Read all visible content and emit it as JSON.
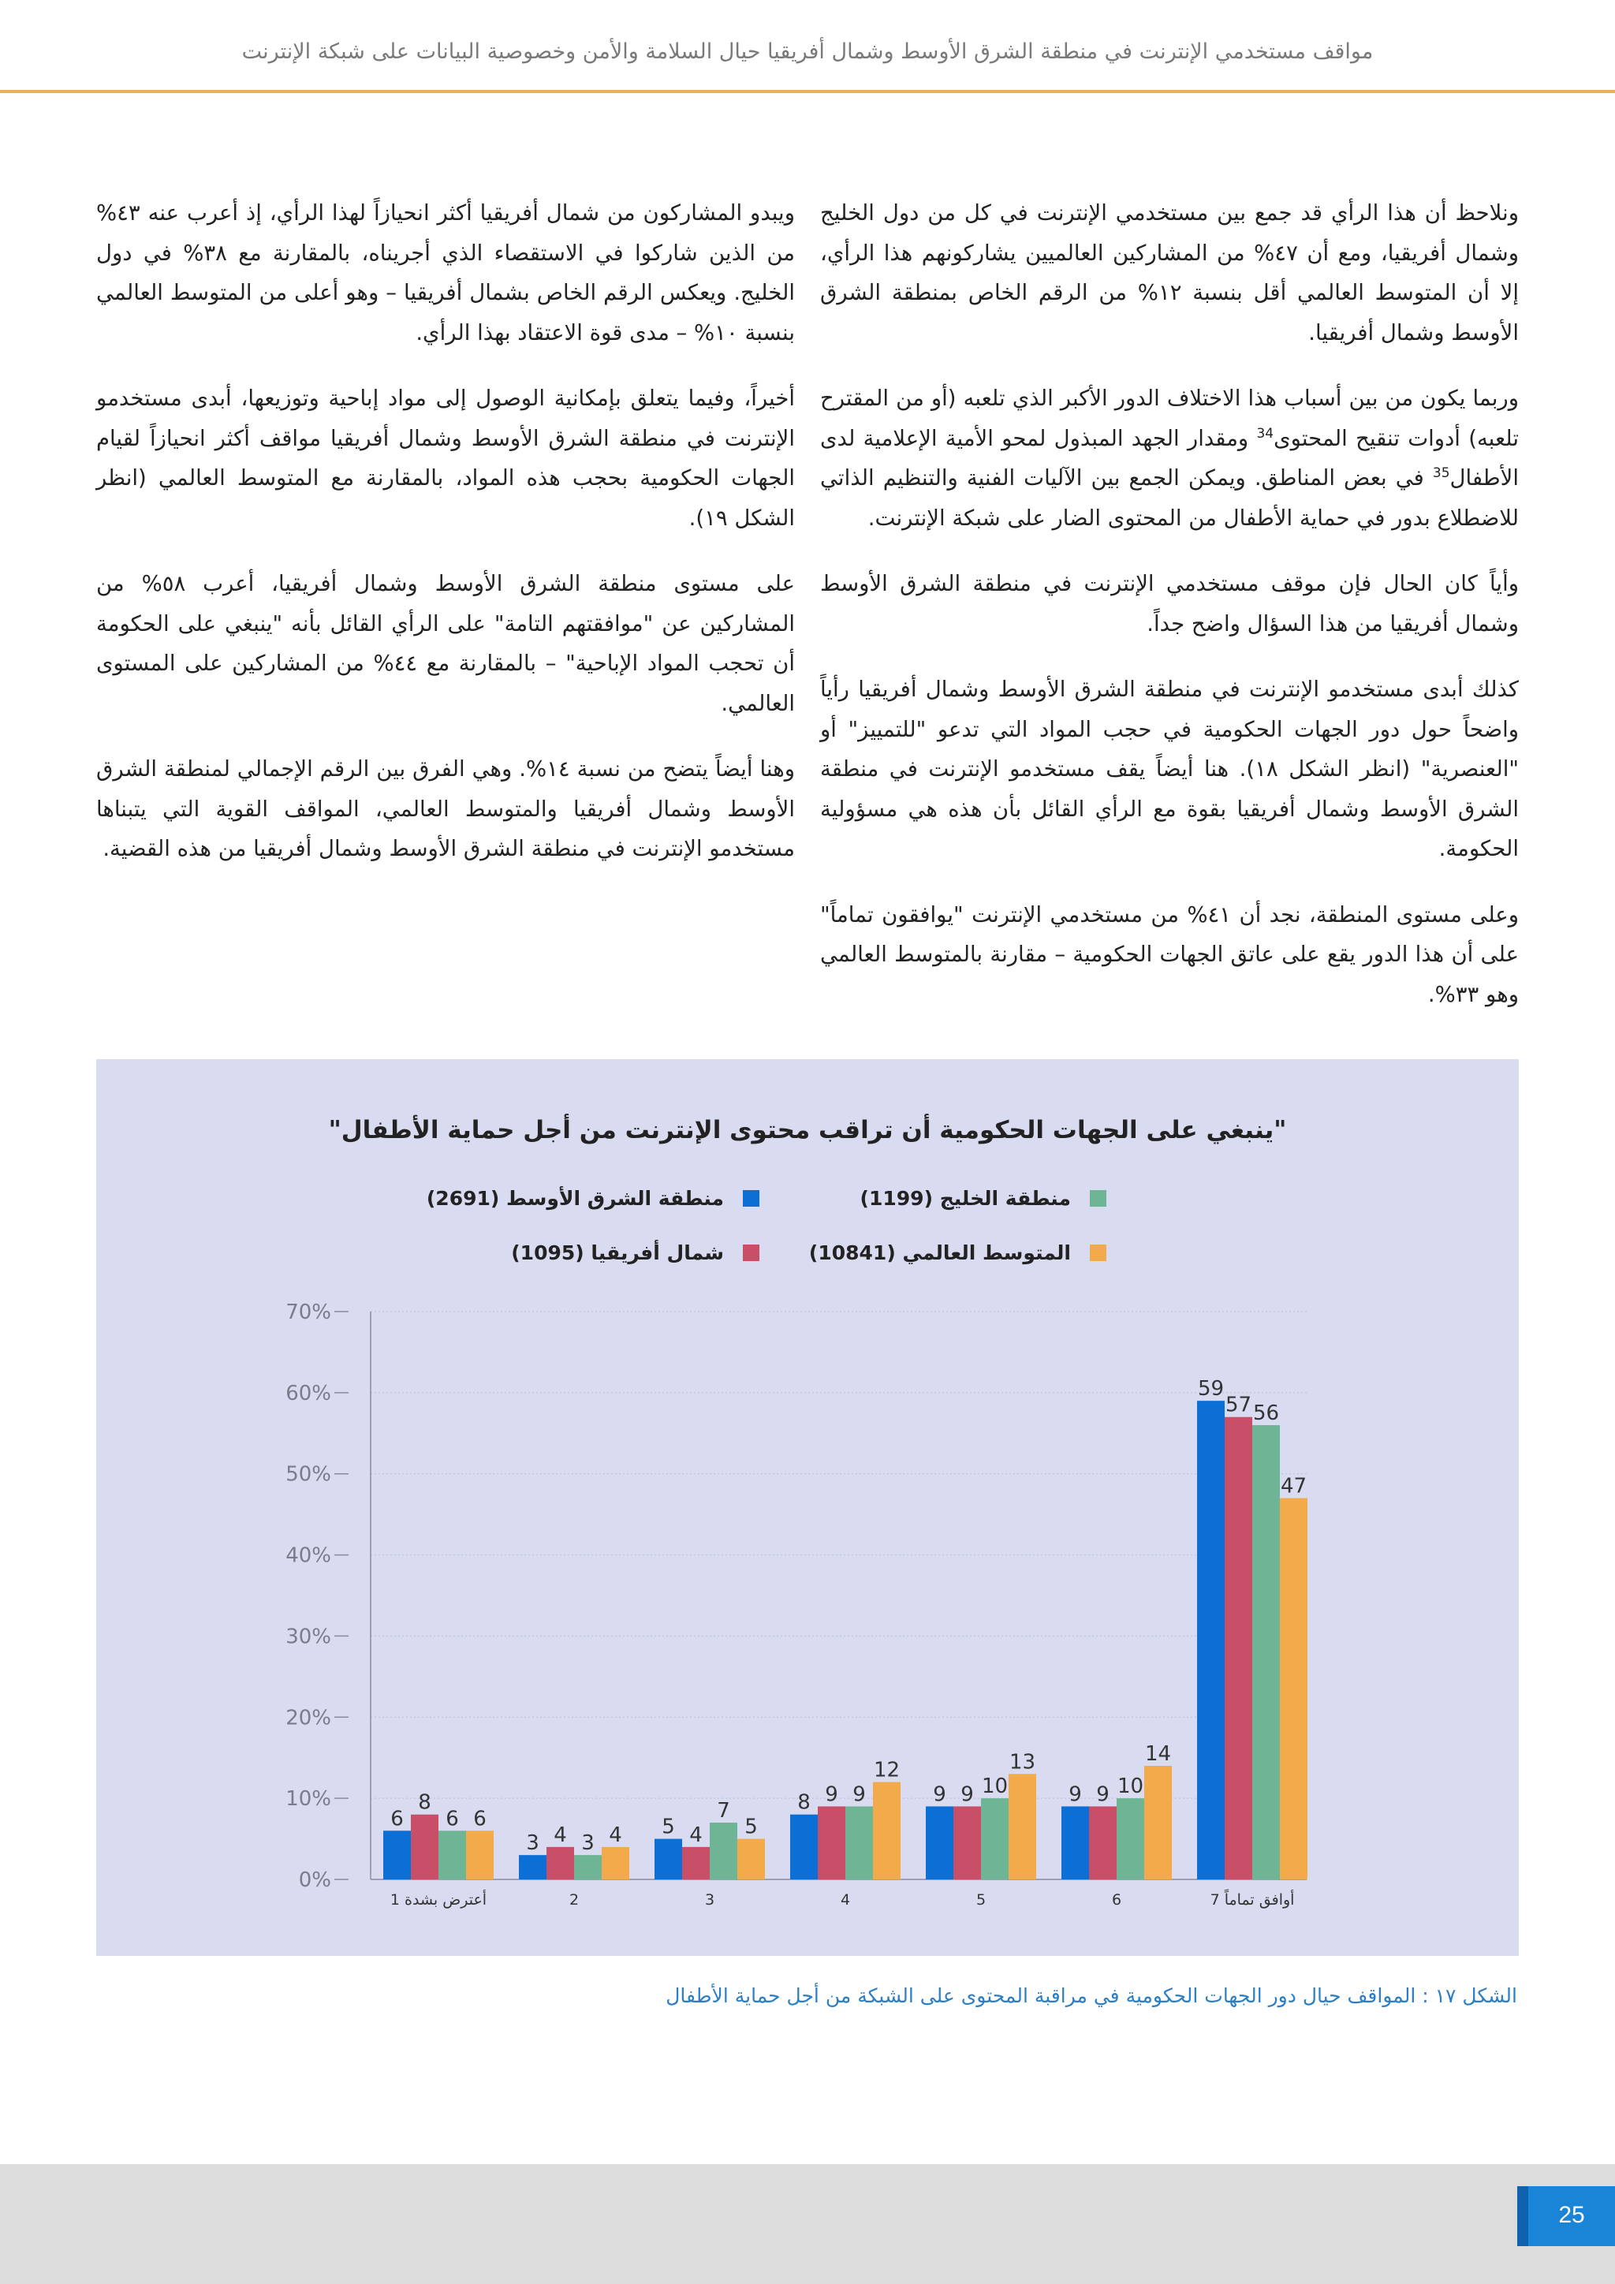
{
  "header": {
    "title": "مواقف مستخدمي الإنترنت في منطقة الشرق الأوسط وشمال أفريقيا حيال السلامة والأمن وخصوصية البيانات على شبكة الإنترنت"
  },
  "body_text": {
    "right_column": [
      {
        "text": "ونلاحظ أن هذا الرأي قد جمع بين مستخدمي الإنترنت في كل من دول الخليج وشمال أفريقيا، ومع أن ٤٧% من المشاركين العالميين يشاركونهم هذا الرأي، إلا أن المتوسط العالمي أقل بنسبة ١٢% من الرقم الخاص بمنطقة الشرق الأوسط وشمال أفريقيا."
      },
      {
        "parts": [
          "وربما يكون من بين أسباب هذا الاختلاف الدور الأكبر الذي تلعبه (أو من المقترح تلعبه) أدوات تنقيح المحتوى",
          "34",
          " ومقدار الجهد المبذول لمحو الأمية الإعلامية لدى الأطفال",
          "35",
          " في بعض المناطق. ويمكن الجمع بين الآليات الفنية والتنظيم الذاتي للاضطلاع بدور في حماية الأطفال من المحتوى الضار على شبكة الإنترنت."
        ]
      },
      {
        "text": "وأياً كان الحال فإن موقف مستخدمي الإنترنت في منطقة الشرق الأوسط وشمال أفريقيا من هذا السؤال واضح جداً."
      },
      {
        "text": "كذلك أبدى مستخدمو الإنترنت في منطقة الشرق الأوسط وشمال أفريقيا رأياً واضحاً حول دور الجهات الحكومية في حجب المواد التي تدعو \"للتمييز\" أو \"العنصرية\" (انظر الشكل ١٨). هنا أيضاً يقف مستخدمو الإنترنت في منطقة الشرق الأوسط وشمال أفريقيا بقوة مع الرأي القائل بأن هذه هي مسؤولية الحكومة."
      },
      {
        "text": "وعلى مستوى المنطقة، نجد أن ٤١% من مستخدمي الإنترنت \"يوافقون تماماً\" على أن هذا الدور يقع على عاتق الجهات الحكومية – مقارنة بالمتوسط العالمي وهو ٣٣%."
      }
    ],
    "left_column": [
      {
        "text": "ويبدو المشاركون من شمال أفريقيا أكثر انحيازاً لهذا الرأي، إذ أعرب عنه ٤٣% من الذين شاركوا في الاستقصاء الذي أجريناه، بالمقارنة مع ٣٨% في دول الخليج. ويعكس الرقم الخاص بشمال أفريقيا – وهو أعلى من المتوسط العالمي بنسبة ١٠% – مدى قوة الاعتقاد بهذا الرأي."
      },
      {
        "text": "أخيراً، وفيما يتعلق بإمكانية الوصول إلى مواد إباحية وتوزيعها، أبدى مستخدمو الإنترنت في منطقة الشرق الأوسط وشمال أفريقيا مواقف أكثر انحيازاً لقيام الجهات الحكومية بحجب هذه المواد، بالمقارنة مع المتوسط العالمي (انظر الشكل ١٩)."
      },
      {
        "text": "على مستوى منطقة الشرق الأوسط وشمال أفريقيا، أعرب ٥٨% من المشاركين عن \"موافقتهم التامة\" على الرأي القائل بأنه \"ينبغي على الحكومة أن تحجب المواد الإباحية\" – بالمقارنة مع ٤٤% من المشاركين على المستوى العالمي."
      },
      {
        "text": "وهنا أيضاً يتضح من نسبة ١٤%. وهي الفرق بين الرقم الإجمالي لمنطقة الشرق الأوسط وشمال أفريقيا والمتوسط العالمي، المواقف القوية التي يتبناها مستخدمو الإنترنت في منطقة الشرق الأوسط وشمال أفريقيا من هذه القضية."
      }
    ]
  },
  "chart_data": {
    "type": "bar",
    "title": "\"ينبغي على الجهات الحكومية أن تراقب محتوى الإنترنت من أجل حماية الأطفال\"",
    "categories": [
      "أعترض بشدة 1",
      "2",
      "3",
      "4",
      "5",
      "6",
      "أوافق تماماً 7"
    ],
    "series": [
      {
        "name": "منطقة الشرق الأوسط (2691)",
        "color": "#0b6fd6",
        "values": [
          6,
          3,
          5,
          8,
          9,
          9,
          59
        ]
      },
      {
        "name": "شمال أفريقيا (1095)",
        "color": "#c94f68",
        "values": [
          8,
          4,
          4,
          9,
          9,
          9,
          57
        ]
      },
      {
        "name": "منطقة الخليج (1199)",
        "color": "#6db595",
        "values": [
          6,
          3,
          7,
          9,
          10,
          10,
          56
        ]
      },
      {
        "name": "المتوسط العالمي (10841)",
        "color": "#f3aa4a",
        "values": [
          6,
          4,
          5,
          12,
          13,
          14,
          47
        ]
      }
    ],
    "yticks": [
      "0%",
      "10%",
      "20%",
      "30%",
      "40%",
      "50%",
      "60%",
      "70%"
    ],
    "ylim": [
      0,
      70
    ],
    "grid": true,
    "legend_position": "top"
  },
  "caption": "الشكل ١٧ : المواقف حيال دور الجهات الحكومية في مراقبة المحتوى على الشبكة من أجل حماية الأطفال",
  "footer": {
    "page_number": "25"
  }
}
